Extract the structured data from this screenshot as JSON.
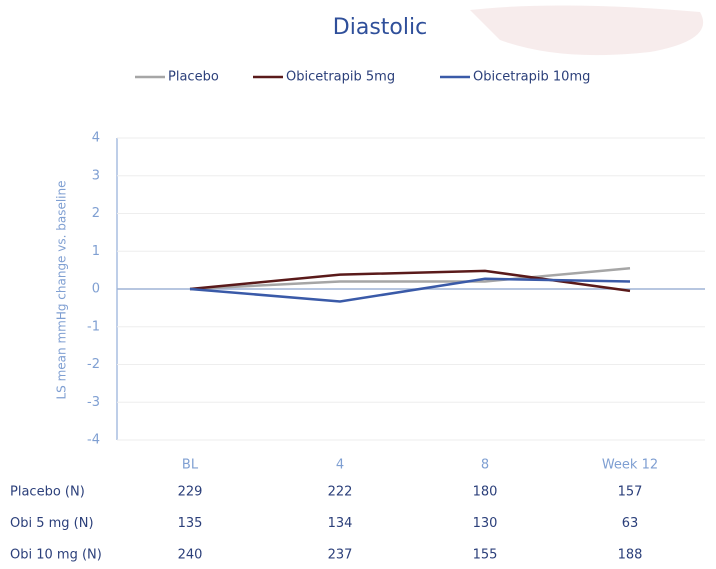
{
  "chart_data": {
    "type": "line",
    "title": "Diastolic",
    "y_label": "LS mean mmHg change vs. baseline",
    "categories": [
      "BL",
      "4",
      "8",
      "Week 12"
    ],
    "series": [
      {
        "name": "Placebo",
        "color": "#a6a6a6",
        "values": [
          0,
          0.2,
          0.2,
          0.55
        ]
      },
      {
        "name": "Obicetrapib 5mg",
        "color": "#5a1a1a",
        "values": [
          0,
          0.38,
          0.48,
          -0.05
        ]
      },
      {
        "name": "Obicetrapib 10mg",
        "color": "#3a5aa8",
        "values": [
          0,
          -0.33,
          0.27,
          0.2
        ]
      }
    ],
    "ylim": [
      -4,
      4
    ],
    "yticks": [
      -4,
      -3,
      -2,
      -1,
      0,
      1,
      2,
      3,
      4
    ],
    "grid": true,
    "n_table": [
      {
        "label": "Placebo (N)",
        "values": [
          229,
          222,
          180,
          157
        ]
      },
      {
        "label": "Obi 5 mg (N)",
        "values": [
          135,
          134,
          130,
          63
        ]
      },
      {
        "label": "Obi 10 mg (N)",
        "values": [
          240,
          237,
          155,
          188
        ]
      }
    ]
  }
}
